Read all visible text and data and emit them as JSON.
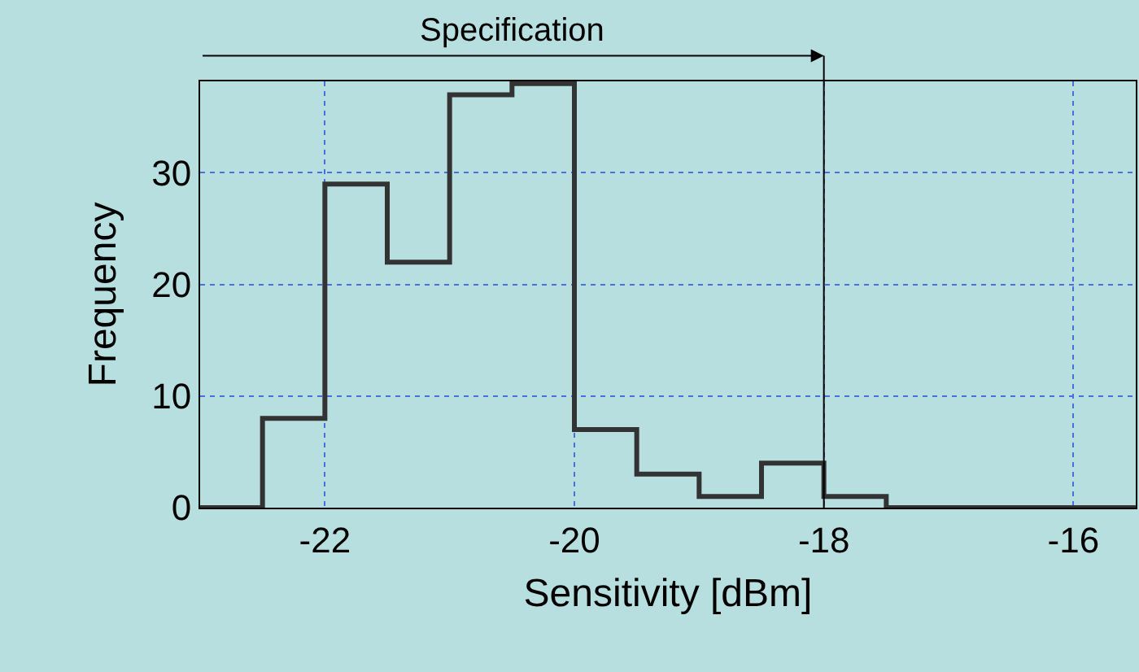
{
  "chart_data": {
    "type": "histogram",
    "xlabel": "Sensitivity [dBm]",
    "ylabel": "Frequency",
    "bins": [
      -23,
      -22.5,
      -22,
      -21.5,
      -21,
      -20.5,
      -20,
      -19.5,
      -19,
      -18.5,
      -18,
      -17.5,
      -17,
      -16.5,
      -16,
      -15.5
    ],
    "values": [
      0,
      8,
      29,
      22,
      37,
      38,
      7,
      3,
      1,
      4,
      1,
      0,
      0,
      0,
      0
    ],
    "color": "#333333",
    "xlim": [
      -23,
      -15.5
    ],
    "xticks": [
      -22,
      -20,
      -18,
      -16
    ],
    "ylim": [
      0,
      38.2
    ],
    "yticks": [
      0,
      10,
      20,
      30
    ],
    "grid": true,
    "ref_lines": [
      {
        "axis": "x",
        "value": -18,
        "label": "Specification",
        "color": "#000000"
      }
    ]
  }
}
